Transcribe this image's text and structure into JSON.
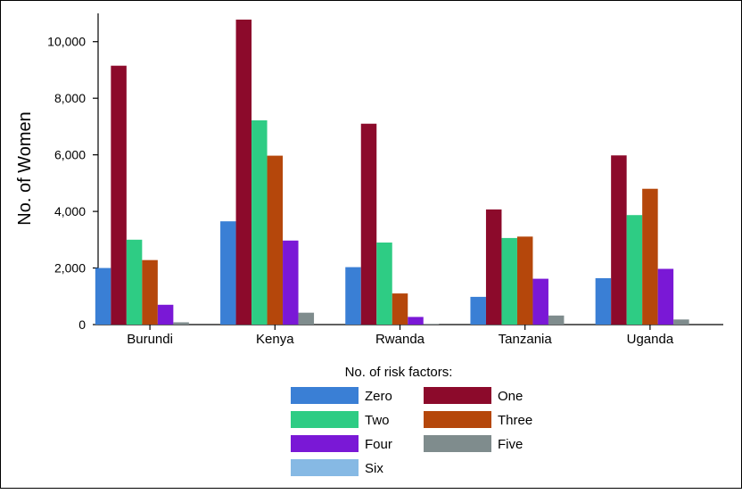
{
  "chart_data": {
    "type": "bar",
    "title": "",
    "xlabel": "",
    "ylabel": "No. of Women",
    "ylim": [
      0,
      11000
    ],
    "yticks": [
      0,
      2000,
      4000,
      6000,
      8000,
      10000
    ],
    "ytick_labels": [
      "0",
      "2,000",
      "4,000",
      "6,000",
      "8,000",
      "10,000"
    ],
    "grid": false,
    "legend_title": "No. of risk factors:",
    "legend_position": "bottom",
    "categories": [
      "Burundi",
      "Kenya",
      "Rwanda",
      "Tanzania",
      "Uganda"
    ],
    "series": [
      {
        "name": "Zero",
        "color": "#3a7fd5",
        "values": [
          2000,
          3650,
          2030,
          980,
          1640
        ]
      },
      {
        "name": "One",
        "color": "#8c0a2b",
        "values": [
          9150,
          10780,
          7100,
          4070,
          5980
        ]
      },
      {
        "name": "Two",
        "color": "#2ecc84",
        "values": [
          3000,
          7220,
          2900,
          3060,
          3870
        ]
      },
      {
        "name": "Three",
        "color": "#b5470b",
        "values": [
          2280,
          5970,
          1100,
          3110,
          4800
        ]
      },
      {
        "name": "Four",
        "color": "#7a18d6",
        "values": [
          700,
          2970,
          270,
          1620,
          1970
        ]
      },
      {
        "name": "Five",
        "color": "#7f8c8d",
        "values": [
          80,
          420,
          20,
          320,
          180
        ]
      },
      {
        "name": "Six",
        "color": "#86b9e4",
        "values": [
          0,
          0,
          0,
          0,
          0
        ]
      }
    ]
  }
}
